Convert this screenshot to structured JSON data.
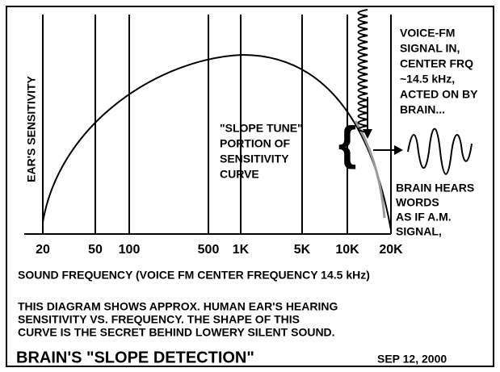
{
  "y_axis_label": "EAR'S SENSITIVITY",
  "x_tick_labels": [
    "20",
    "50",
    "100",
    "500",
    "1K",
    "5K",
    "10K",
    "20K"
  ],
  "x_axis_label": "SOUND FREQUENCY (VOICE FM CENTER FREQUENCY  14.5 kHz)",
  "signal_note": [
    "VOICE-FM",
    "SIGNAL IN,",
    "CENTER FRQ",
    "~14.5 kHz,",
    "ACTED ON BY",
    "BRAIN..."
  ],
  "slope_note": [
    "\"SLOPE TUNE\"",
    "PORTION OF",
    "SENSITIVITY",
    "CURVE"
  ],
  "hears_note": [
    "BRAIN HEARS",
    "WORDS",
    "AS IF A.M.",
    "SIGNAL,"
  ],
  "description": [
    "THIS DIAGRAM SHOWS APPROX. HUMAN EAR'S HEARING",
    "SENSITIVITY VS. FREQUENCY.  THE SHAPE OF THIS",
    "CURVE IS THE SECRET BEHIND LOWERY SILENT SOUND."
  ],
  "title": "BRAIN'S \"SLOPE DETECTION\"",
  "date": "SEP 12, 2000"
}
